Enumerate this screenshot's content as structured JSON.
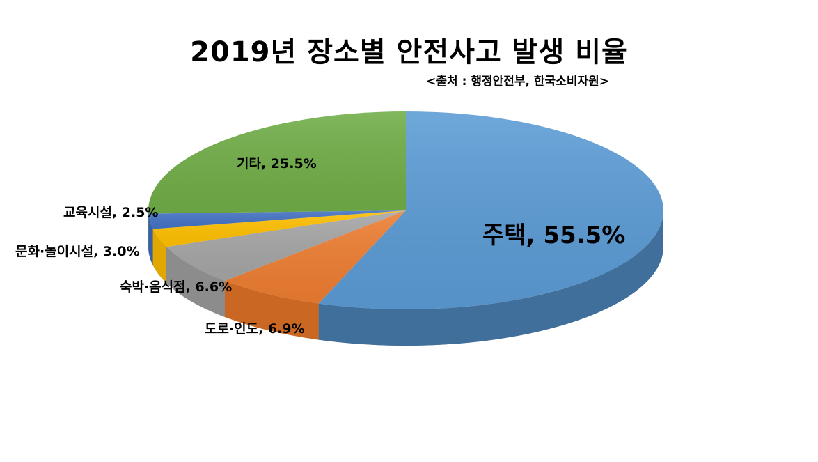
{
  "header": {
    "title": "2019년 장소별 안전사고 발생 비율",
    "source": "<출처 : 행정안전부, 한국소비자원>"
  },
  "chart_data": {
    "type": "pie",
    "style": "3d",
    "title": "2019년 장소별 안전사고 발생 비율",
    "subtitle": "<출처 : 행정안전부, 한국소비자원>",
    "categories": [
      "주택",
      "도로·인도",
      "숙박·음식점",
      "문화·놀이시설",
      "교육시설",
      "기타"
    ],
    "values": [
      55.5,
      6.9,
      6.6,
      3.0,
      2.5,
      25.5
    ],
    "unit": "%",
    "colors": [
      "#5b9bd5",
      "#ed7d31",
      "#a5a5a5",
      "#ffc000",
      "#4472c4",
      "#70ad47"
    ],
    "side_colors": [
      "#1f3a56",
      "#a04d12",
      "#6e6e6e",
      "#b88a00",
      "#2b4a82",
      "#4a7a2e"
    ],
    "labels": [
      "주택, 55.5%",
      "도로·인도, 6.9%",
      "숙박·음식점, 6.6%",
      "문화·놀이시설, 3.0%",
      "교육시설, 2.5%",
      "기타, 25.5%"
    ],
    "legend": "none",
    "start_angle_deg": 90,
    "direction": "clockwise"
  },
  "labels": {
    "jutaek": "주택, 55.5%",
    "doro": "도로·인도, 6.9%",
    "sukbak": "숙박·음식점, 6.6%",
    "munhwa": "문화·놀이시설, 3.0%",
    "gyoyuk": "교육시설, 2.5%",
    "gita": "기타, 25.5%"
  }
}
